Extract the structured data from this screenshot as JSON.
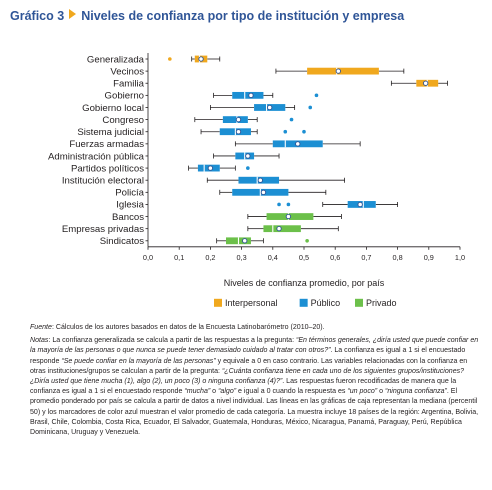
{
  "figure": {
    "label": "Gráfico 3",
    "title": "Niveles de confianza por tipo de institución y empresa"
  },
  "chart_data": {
    "type": "box",
    "xlabel": "Niveles de confianza promedio, por país",
    "ylabel": "",
    "xlim": [
      0,
      1.0
    ],
    "x_ticks": [
      "0,0",
      "0,1",
      "0,2",
      "0,3",
      "0,4",
      "0,5",
      "0,6",
      "0,7",
      "0,8",
      "0,9",
      "1,0"
    ],
    "grid": false,
    "legend_position": "bottom",
    "legend": [
      {
        "name": "Interpersonal",
        "color": "#f0a81e"
      },
      {
        "name": "Público",
        "color": "#1c8fd3"
      },
      {
        "name": "Privado",
        "color": "#6cc04a"
      }
    ],
    "series": [
      {
        "category": "Generalizada",
        "group": "Interpersonal",
        "whisker_low": 0.14,
        "q1": 0.15,
        "median": 0.165,
        "q3": 0.19,
        "whisker_high": 0.23,
        "mean": 0.17,
        "outliers": [
          0.07
        ]
      },
      {
        "category": "Vecinos",
        "group": "Interpersonal",
        "whisker_low": 0.41,
        "q1": 0.51,
        "median": 0.605,
        "q3": 0.74,
        "whisker_high": 0.82,
        "mean": 0.61,
        "outliers": []
      },
      {
        "category": "Familia",
        "group": "Interpersonal",
        "whisker_low": 0.78,
        "q1": 0.86,
        "median": 0.895,
        "q3": 0.93,
        "whisker_high": 0.96,
        "mean": 0.89,
        "outliers": []
      },
      {
        "category": "Gobierno",
        "group": "Público",
        "whisker_low": 0.21,
        "q1": 0.27,
        "median": 0.31,
        "q3": 0.37,
        "whisker_high": 0.4,
        "mean": 0.33,
        "outliers": [
          0.54
        ]
      },
      {
        "category": "Gobierno local",
        "group": "Público",
        "whisker_low": 0.2,
        "q1": 0.34,
        "median": 0.38,
        "q3": 0.44,
        "whisker_high": 0.47,
        "mean": 0.39,
        "outliers": [
          0.52
        ]
      },
      {
        "category": "Congreso",
        "group": "Público",
        "whisker_low": 0.15,
        "q1": 0.24,
        "median": 0.285,
        "q3": 0.32,
        "whisker_high": 0.35,
        "mean": 0.29,
        "outliers": [
          0.46
        ]
      },
      {
        "category": "Sistema judicial",
        "group": "Público",
        "whisker_low": 0.17,
        "q1": 0.23,
        "median": 0.28,
        "q3": 0.33,
        "whisker_high": 0.35,
        "mean": 0.29,
        "outliers": [
          0.44,
          0.5
        ]
      },
      {
        "category": "Fuerzas armadas",
        "group": "Público",
        "whisker_low": 0.28,
        "q1": 0.4,
        "median": 0.44,
        "q3": 0.56,
        "whisker_high": 0.68,
        "mean": 0.48,
        "outliers": []
      },
      {
        "category": "Administración pública",
        "group": "Público",
        "whisker_low": 0.21,
        "q1": 0.28,
        "median": 0.31,
        "q3": 0.34,
        "whisker_high": 0.42,
        "mean": 0.32,
        "outliers": []
      },
      {
        "category": "Partidos políticos",
        "group": "Público",
        "whisker_low": 0.13,
        "q1": 0.16,
        "median": 0.18,
        "q3": 0.23,
        "whisker_high": 0.28,
        "mean": 0.2,
        "outliers": [
          0.32
        ]
      },
      {
        "category": "Institución electoral",
        "group": "Público",
        "whisker_low": 0.19,
        "q1": 0.29,
        "median": 0.35,
        "q3": 0.42,
        "whisker_high": 0.63,
        "mean": 0.36,
        "outliers": []
      },
      {
        "category": "Policía",
        "group": "Público",
        "whisker_low": 0.23,
        "q1": 0.27,
        "median": 0.36,
        "q3": 0.45,
        "whisker_high": 0.57,
        "mean": 0.37,
        "outliers": []
      },
      {
        "category": "Iglesia",
        "group": "Público",
        "whisker_low": 0.56,
        "q1": 0.64,
        "median": 0.69,
        "q3": 0.73,
        "whisker_high": 0.8,
        "mean": 0.68,
        "outliers": [
          0.42,
          0.45
        ]
      },
      {
        "category": "Bancos",
        "group": "Privado",
        "whisker_low": 0.32,
        "q1": 0.38,
        "median": 0.45,
        "q3": 0.53,
        "whisker_high": 0.62,
        "mean": 0.45,
        "outliers": []
      },
      {
        "category": "Empresas privadas",
        "group": "Privado",
        "whisker_low": 0.32,
        "q1": 0.37,
        "median": 0.4,
        "q3": 0.49,
        "whisker_high": 0.61,
        "mean": 0.42,
        "outliers": []
      },
      {
        "category": "Sindicatos",
        "group": "Privado",
        "whisker_low": 0.22,
        "q1": 0.25,
        "median": 0.29,
        "q3": 0.33,
        "whisker_high": 0.37,
        "mean": 0.31,
        "outliers": [
          0.51
        ]
      }
    ]
  },
  "notes": {
    "source_label": "Fuente",
    "source_text": ": Cálculos de los autores basados en datos de la Encuesta Latinobarómetro (2010–20).",
    "notes_label": "Notas",
    "segments": [
      {
        "t": ": La confianza generalizada se calcula a partir de las respuestas a la pregunta: ",
        "i": false
      },
      {
        "t": "“En términos generales, ¿diría usted que puede confiar en la mayoría de las personas o que nunca se puede tener demasiado cuidado al tratar con otros?”",
        "i": true
      },
      {
        "t": ". La confianza es igual a 1 si el encuestado responde ",
        "i": false
      },
      {
        "t": "“Se puede confiar en la mayoría de las personas”",
        "i": true
      },
      {
        "t": " y equivale a 0 en caso contrario. Las variables relacionadas con la confianza en otras instituciones/grupos se calculan a partir de la pregunta: ",
        "i": false
      },
      {
        "t": "“¿Cuánta confianza tiene en cada uno de los siguientes grupos/instituciones? ¿Diría usted que tiene mucha (1), algo (2), un poco (3) o ninguna confianza (4)?”",
        "i": true
      },
      {
        "t": ". Las respuestas fueron recodificadas de manera que la confianza es igual a 1 si el encuestado responde ",
        "i": false
      },
      {
        "t": "“mucha”",
        "i": true
      },
      {
        "t": " o ",
        "i": false
      },
      {
        "t": "“algo”",
        "i": true
      },
      {
        "t": " e igual a 0 cuando la respuesta es ",
        "i": false
      },
      {
        "t": "“un poco”",
        "i": true
      },
      {
        "t": " o ",
        "i": false
      },
      {
        "t": "“ninguna confianza”",
        "i": true
      },
      {
        "t": ". El promedio ponderado por país se calcula a partir de datos a nivel individual. Las líneas en las gráficas de caja representan la mediana (percentil 50) y los marcadores de color azul muestran el valor promedio de cada categoría. La muestra incluye 18 países de la región: Argentina, Bolivia, Brasil, Chile, Colombia, Costa Rica, Ecuador, El Salvador, Guatemala, Honduras, México, Nicaragua, Panamá, Paraguay, Perú, República Dominicana, Uruguay y Venezuela.",
        "i": false
      }
    ]
  }
}
